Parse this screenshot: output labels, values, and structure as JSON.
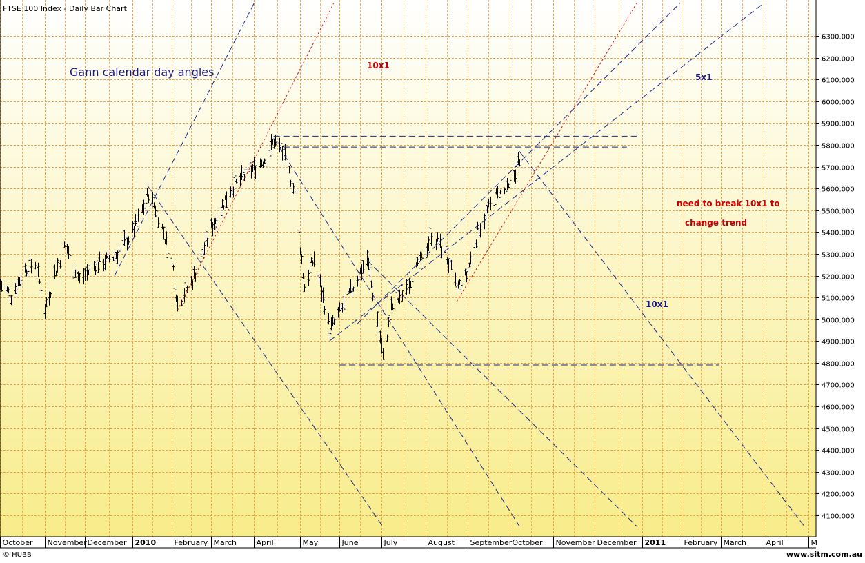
{
  "window_title": "FTSE 100 Index - Daily Bar Chart",
  "footer": {
    "left": "© HUBB",
    "right": "www.sitm.com.au"
  },
  "colors": {
    "background_top": "#ffffff",
    "background_bottom": "#f8ec8a",
    "grid": "#f0a040",
    "bars": "#000000",
    "gann_blue": "#1a2a8c",
    "gann_red": "#e01010",
    "annotation_blue": "#1a1a80",
    "annotation_red": "#cc0000"
  },
  "annotations": {
    "main_title": "Gann calendar day angles",
    "red_10x1": "10x1",
    "blue_5x1": "5x1",
    "blue_10x1": "10x1",
    "note_line1": "need to break 10x1 to",
    "note_line2": "change trend"
  },
  "chart_data": {
    "type": "bar",
    "title": "FTSE 100 Index - Daily Bar Chart",
    "xlabel": "",
    "ylabel": "",
    "x_range": [
      "2009-10-01",
      "2011-05-01"
    ],
    "ylim": [
      4050,
      6420
    ],
    "grid": true,
    "x_ticks": [
      {
        "label": "October",
        "date": "2009-10-01"
      },
      {
        "label": "November",
        "date": "2009-11-02"
      },
      {
        "label": "December",
        "date": "2009-12-01"
      },
      {
        "label": "2010",
        "date": "2010-01-04"
      },
      {
        "label": "February",
        "date": "2010-02-01"
      },
      {
        "label": "March",
        "date": "2010-03-01"
      },
      {
        "label": "April",
        "date": "2010-04-01"
      },
      {
        "label": "May",
        "date": "2010-05-04"
      },
      {
        "label": "June",
        "date": "2010-06-01"
      },
      {
        "label": "July",
        "date": "2010-07-01"
      },
      {
        "label": "August",
        "date": "2010-08-02"
      },
      {
        "label": "September",
        "date": "2010-09-01"
      },
      {
        "label": "October",
        "date": "2010-10-01"
      },
      {
        "label": "November",
        "date": "2010-11-01"
      },
      {
        "label": "December",
        "date": "2010-12-01"
      },
      {
        "label": "2011",
        "date": "2011-01-04"
      },
      {
        "label": "February",
        "date": "2011-02-01"
      },
      {
        "label": "March",
        "date": "2011-03-01"
      },
      {
        "label": "April",
        "date": "2011-04-01"
      },
      {
        "label": "M",
        "date": "2011-05-03"
      }
    ],
    "y_ticks": [
      {
        "label": "6300.000",
        "value": 6300
      },
      {
        "label": "6200.000",
        "value": 6200
      },
      {
        "label": "6100.000",
        "value": 6100
      },
      {
        "label": "6000.000",
        "value": 6000
      },
      {
        "label": "5900.000",
        "value": 5900
      },
      {
        "label": "5800.000",
        "value": 5800
      },
      {
        "label": "5700.000",
        "value": 5700
      },
      {
        "label": "5600.000",
        "value": 5600
      },
      {
        "label": "5500.000",
        "value": 5500
      },
      {
        "label": "5400.000",
        "value": 5400
      },
      {
        "label": "5300.000",
        "value": 5300
      },
      {
        "label": "5200.000",
        "value": 5200
      },
      {
        "label": "5100.000",
        "value": 5100
      },
      {
        "label": "5000.000",
        "value": 5000
      },
      {
        "label": "4900.000",
        "value": 4900
      },
      {
        "label": "4800.000",
        "value": 4800
      },
      {
        "label": "4700.000",
        "value": 4700
      },
      {
        "label": "4600.000",
        "value": 4600
      },
      {
        "label": "4500.000",
        "value": 4500
      },
      {
        "label": "4400.000",
        "value": 4400
      },
      {
        "label": "4300.000",
        "value": 4300
      },
      {
        "label": "4200.000",
        "value": 4200
      },
      {
        "label": "4100.000",
        "value": 4100
      }
    ],
    "price_path": [
      {
        "date": "2009-10-01",
        "close": 5160
      },
      {
        "date": "2009-10-09",
        "close": 5110
      },
      {
        "date": "2009-10-19",
        "close": 5230
      },
      {
        "date": "2009-10-26",
        "close": 5260
      },
      {
        "date": "2009-11-02",
        "close": 5050
      },
      {
        "date": "2009-11-10",
        "close": 5230
      },
      {
        "date": "2009-11-17",
        "close": 5340
      },
      {
        "date": "2009-11-27",
        "close": 5180
      },
      {
        "date": "2009-12-08",
        "close": 5250
      },
      {
        "date": "2009-12-22",
        "close": 5290
      },
      {
        "date": "2010-01-04",
        "close": 5400
      },
      {
        "date": "2010-01-11",
        "close": 5500
      },
      {
        "date": "2010-01-15",
        "close": 5580
      },
      {
        "date": "2010-01-20",
        "close": 5510
      },
      {
        "date": "2010-01-26",
        "close": 5400
      },
      {
        "date": "2010-02-02",
        "close": 5230
      },
      {
        "date": "2010-02-05",
        "close": 5070
      },
      {
        "date": "2010-02-16",
        "close": 5180
      },
      {
        "date": "2010-03-01",
        "close": 5420
      },
      {
        "date": "2010-03-15",
        "close": 5600
      },
      {
        "date": "2010-03-31",
        "close": 5690
      },
      {
        "date": "2010-04-09",
        "close": 5740
      },
      {
        "date": "2010-04-15",
        "close": 5820
      },
      {
        "date": "2010-04-22",
        "close": 5760
      },
      {
        "date": "2010-04-30",
        "close": 5580
      },
      {
        "date": "2010-05-07",
        "close": 5150
      },
      {
        "date": "2010-05-14",
        "close": 5280
      },
      {
        "date": "2010-05-25",
        "close": 4950
      },
      {
        "date": "2010-06-07",
        "close": 5100
      },
      {
        "date": "2010-06-21",
        "close": 5280
      },
      {
        "date": "2010-06-30",
        "close": 4920
      },
      {
        "date": "2010-07-02",
        "close": 4820
      },
      {
        "date": "2010-07-08",
        "close": 5050
      },
      {
        "date": "2010-07-19",
        "close": 5150
      },
      {
        "date": "2010-07-30",
        "close": 5270
      },
      {
        "date": "2010-08-06",
        "close": 5390
      },
      {
        "date": "2010-08-16",
        "close": 5300
      },
      {
        "date": "2010-08-24",
        "close": 5140
      },
      {
        "date": "2010-08-31",
        "close": 5200
      },
      {
        "date": "2010-09-08",
        "close": 5400
      },
      {
        "date": "2010-09-20",
        "close": 5560
      },
      {
        "date": "2010-10-01",
        "close": 5600
      },
      {
        "date": "2010-10-08",
        "close": 5740
      }
    ],
    "gann_lines": [
      {
        "name": "blue-up-1",
        "color": "blue",
        "dash": "long",
        "points": [
          [
            "2009-12-22",
            5200
          ],
          [
            "2010-04-01",
            6450
          ]
        ]
      },
      {
        "name": "red-up-1",
        "color": "red",
        "dash": "short",
        "points": [
          [
            "2010-02-05",
            5040
          ],
          [
            "2010-05-28",
            6450
          ]
        ]
      },
      {
        "name": "red-up-2",
        "color": "red",
        "dash": "short",
        "points": [
          [
            "2010-08-24",
            5080
          ],
          [
            "2010-12-31",
            6450
          ]
        ]
      },
      {
        "name": "blue-up-2",
        "color": "blue",
        "dash": "long",
        "points": [
          [
            "2010-06-14",
            4980
          ],
          [
            "2011-01-31",
            6450
          ]
        ]
      },
      {
        "name": "blue-up-3",
        "color": "blue",
        "dash": "long",
        "points": [
          [
            "2010-05-25",
            4900
          ],
          [
            "2011-04-01",
            6450
          ]
        ]
      },
      {
        "name": "blue-down-1",
        "color": "blue",
        "dash": "long",
        "points": [
          [
            "2010-01-15",
            5610
          ],
          [
            "2010-07-02",
            4050
          ]
        ]
      },
      {
        "name": "blue-down-2",
        "color": "blue",
        "dash": "long",
        "points": [
          [
            "2010-04-15",
            5830
          ],
          [
            "2010-10-08",
            4050
          ]
        ]
      },
      {
        "name": "blue-down-3",
        "color": "blue",
        "dash": "long",
        "points": [
          [
            "2010-06-21",
            5270
          ],
          [
            "2010-12-31",
            4050
          ]
        ]
      },
      {
        "name": "blue-down-4",
        "color": "blue",
        "dash": "long",
        "points": [
          [
            "2010-10-08",
            5770
          ],
          [
            "2011-04-30",
            4050
          ]
        ]
      },
      {
        "name": "horizontal-5840",
        "color": "blue",
        "dash": "long",
        "points": [
          [
            "2010-04-15",
            5840
          ],
          [
            "2010-12-31",
            5840
          ]
        ]
      },
      {
        "name": "horizontal-5790",
        "color": "blue",
        "dash": "long",
        "points": [
          [
            "2010-04-22",
            5790
          ],
          [
            "2010-12-24",
            5790
          ]
        ]
      },
      {
        "name": "horizontal-4790",
        "color": "blue",
        "dash": "long",
        "points": [
          [
            "2010-06-01",
            4790
          ],
          [
            "2011-02-28",
            4790
          ]
        ]
      }
    ]
  }
}
